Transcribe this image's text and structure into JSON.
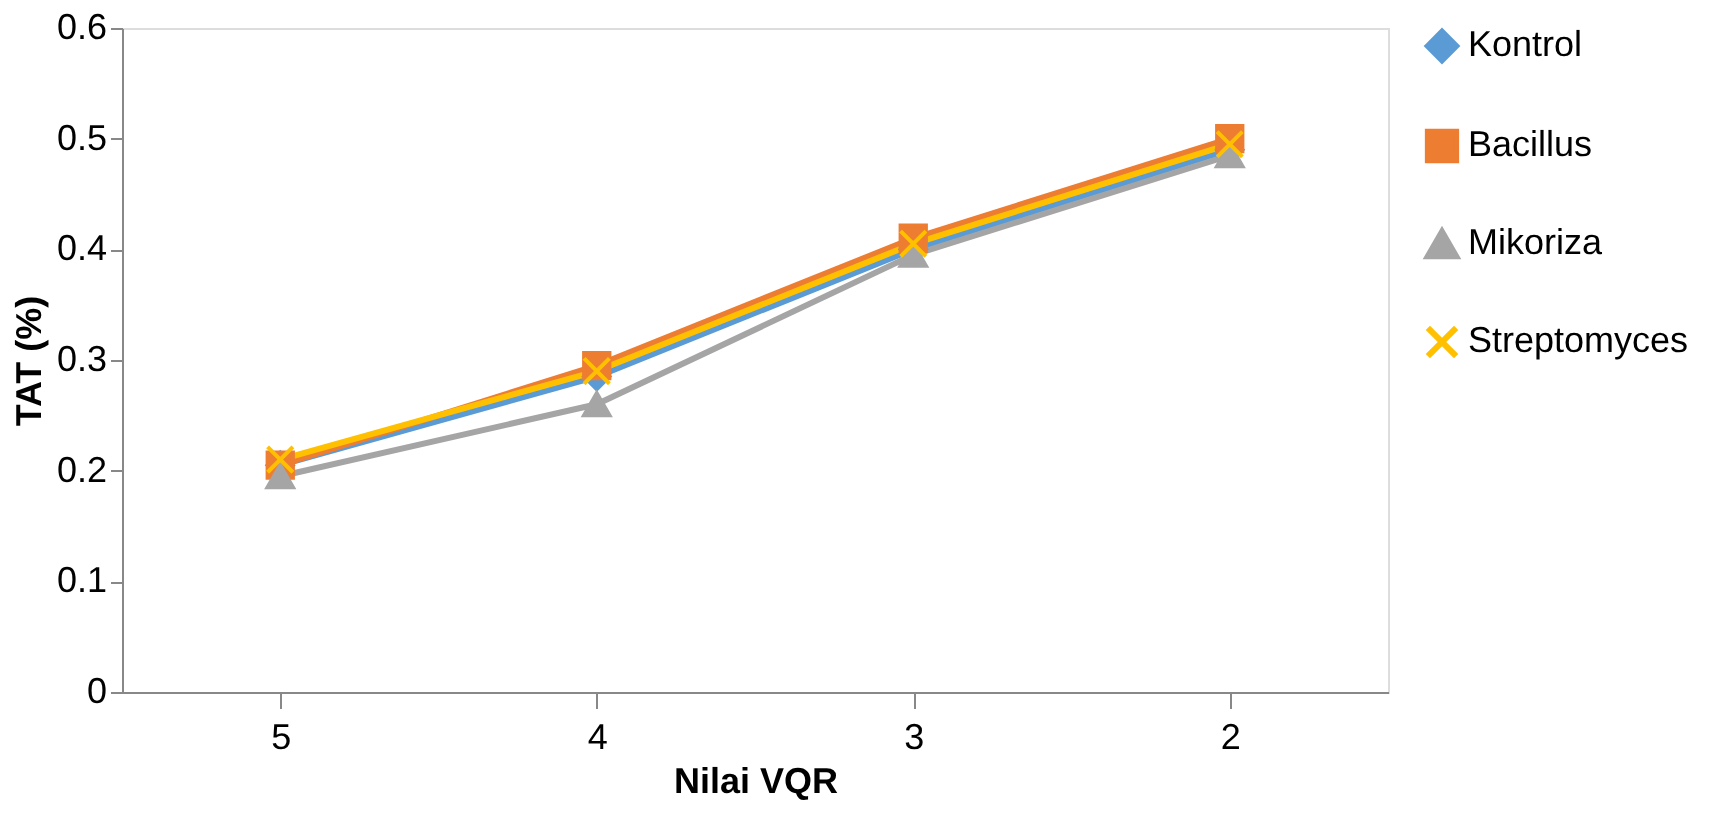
{
  "chart_data": {
    "type": "line",
    "xlabel": "Nilai VQR",
    "ylabel": "TAT (%)",
    "categories": [
      "5",
      "4",
      "3",
      "2"
    ],
    "series": [
      {
        "name": "Kontrol",
        "color": "#5b9bd5",
        "marker": "diamond",
        "values": [
          0.205,
          0.285,
          0.4,
          0.49
        ]
      },
      {
        "name": "Bacillus",
        "color": "#ed7d31",
        "marker": "square",
        "values": [
          0.205,
          0.295,
          0.41,
          0.5
        ]
      },
      {
        "name": "Mikoriza",
        "color": "#a5a5a5",
        "marker": "triangle",
        "values": [
          0.195,
          0.26,
          0.395,
          0.485
        ]
      },
      {
        "name": "Streptomyces",
        "color": "#ffc000",
        "marker": "cross",
        "values": [
          0.21,
          0.29,
          0.405,
          0.495
        ]
      }
    ],
    "ylim": [
      0,
      0.6
    ],
    "yticks": [
      0,
      0.1,
      0.2,
      0.3,
      0.4,
      0.5,
      0.6
    ],
    "grid": false,
    "legend": "right"
  }
}
